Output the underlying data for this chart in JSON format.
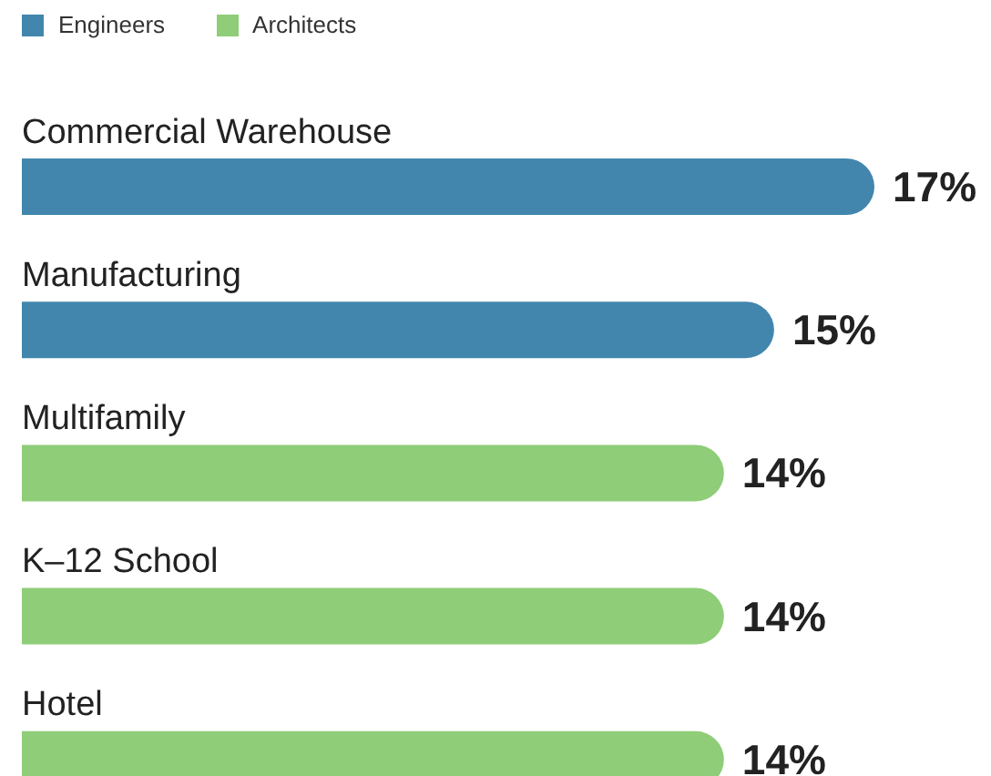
{
  "chart_data": {
    "type": "bar",
    "orientation": "horizontal",
    "stacked": true,
    "categories": [
      "Commercial Warehouse",
      "Manufacturing",
      "Multifamily",
      "K–12 School",
      "Hotel"
    ],
    "series": [
      {
        "name": "Engineers",
        "color": "#4286ad",
        "values": [
          17,
          15,
          null,
          null,
          null
        ],
        "value_labels": [
          "17%",
          "15%",
          null,
          null,
          null
        ]
      },
      {
        "name": "Architects",
        "color": "#8fcd78",
        "values": [
          null,
          null,
          14,
          14,
          14
        ],
        "value_labels": [
          null,
          null,
          "14%",
          "14%",
          "14%"
        ]
      }
    ],
    "legend": "top left"
  }
}
